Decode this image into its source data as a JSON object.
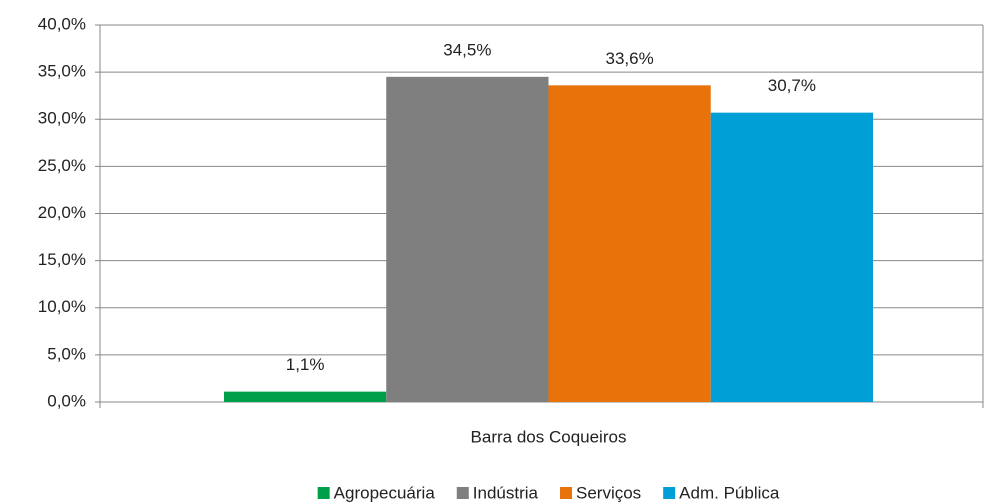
{
  "chart_data": {
    "type": "bar",
    "categories": [
      "Barra dos Coqueiros"
    ],
    "series": [
      {
        "name": "Agropecuária",
        "color": "#00a04b",
        "values": [
          1.1
        ],
        "value_labels": [
          "1,1%"
        ]
      },
      {
        "name": "Indústria",
        "color": "#7f7f7f",
        "values": [
          34.5
        ],
        "value_labels": [
          "34,5%"
        ]
      },
      {
        "name": "Serviços",
        "color": "#e8730a",
        "values": [
          33.6
        ],
        "value_labels": [
          "33,6%"
        ]
      },
      {
        "name": "Adm. Pública",
        "color": "#00a0d6",
        "values": [
          30.7
        ],
        "value_labels": [
          "30,7%"
        ]
      }
    ],
    "ylim": [
      0,
      40
    ],
    "yticks": [
      {
        "value": 0,
        "label": "0,0%"
      },
      {
        "value": 5,
        "label": "5,0%"
      },
      {
        "value": 10,
        "label": "10,0%"
      },
      {
        "value": 15,
        "label": "15,0%"
      },
      {
        "value": 20,
        "label": "20,0%"
      },
      {
        "value": 25,
        "label": "25,0%"
      },
      {
        "value": 30,
        "label": "30,0%"
      },
      {
        "value": 35,
        "label": "35,0%"
      },
      {
        "value": 40,
        "label": "40,0%"
      }
    ],
    "grid": true,
    "legend": "bottom"
  }
}
